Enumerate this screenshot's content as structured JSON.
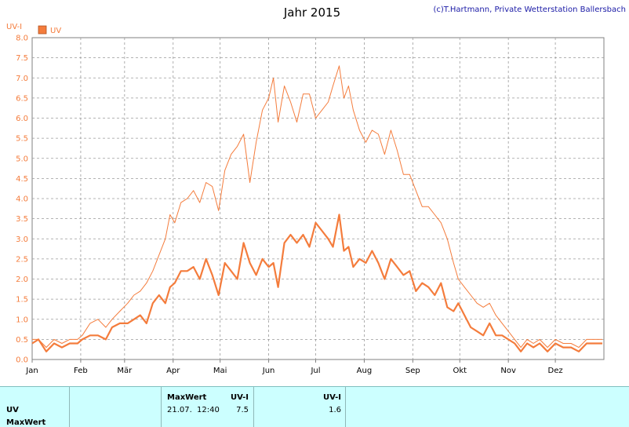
{
  "chart_data": {
    "type": "line",
    "title": "Jahr 2015",
    "copyright": "(c)T.Hartmann, Private Wetterstation Ballersbach",
    "ylabel": "UV-I",
    "ylim": [
      0,
      8
    ],
    "yticks": [
      "0.0",
      "0.5",
      "1.0",
      "1.5",
      "2.0",
      "2.5",
      "3.0",
      "3.5",
      "4.0",
      "4.5",
      "5.0",
      "5.5",
      "6.0",
      "6.5",
      "7.0",
      "7.5",
      "8.0"
    ],
    "xlim": [
      1,
      366
    ],
    "month_labels": [
      "Jan",
      "Feb",
      "Mär",
      "Apr",
      "Mai",
      "Jun",
      "Jul",
      "Aug",
      "Sep",
      "Okt",
      "Nov",
      "Dez"
    ],
    "grid": true,
    "legend": {
      "label": "UV",
      "color": "#f47c3c"
    },
    "series": [
      {
        "name": "UV",
        "role": "max",
        "color": "#f47c3c",
        "values": [
          [
            1,
            0.5
          ],
          [
            5,
            0.5
          ],
          [
            10,
            0.3
          ],
          [
            15,
            0.5
          ],
          [
            20,
            0.4
          ],
          [
            25,
            0.5
          ],
          [
            30,
            0.5
          ],
          [
            33,
            0.6
          ],
          [
            38,
            0.9
          ],
          [
            43,
            1.0
          ],
          [
            48,
            0.8
          ],
          [
            52,
            1.0
          ],
          [
            57,
            1.2
          ],
          [
            62,
            1.4
          ],
          [
            66,
            1.6
          ],
          [
            70,
            1.7
          ],
          [
            74,
            1.9
          ],
          [
            78,
            2.2
          ],
          [
            82,
            2.6
          ],
          [
            86,
            3.0
          ],
          [
            89,
            3.6
          ],
          [
            92,
            3.4
          ],
          [
            96,
            3.9
          ],
          [
            100,
            4.0
          ],
          [
            104,
            4.2
          ],
          [
            108,
            3.9
          ],
          [
            112,
            4.4
          ],
          [
            116,
            4.3
          ],
          [
            120,
            3.7
          ],
          [
            124,
            4.7
          ],
          [
            128,
            5.1
          ],
          [
            132,
            5.3
          ],
          [
            136,
            5.6
          ],
          [
            140,
            4.4
          ],
          [
            144,
            5.4
          ],
          [
            148,
            6.2
          ],
          [
            152,
            6.5
          ],
          [
            155,
            7.0
          ],
          [
            158,
            5.9
          ],
          [
            162,
            6.8
          ],
          [
            166,
            6.4
          ],
          [
            170,
            5.9
          ],
          [
            174,
            6.6
          ],
          [
            178,
            6.6
          ],
          [
            182,
            6.0
          ],
          [
            186,
            6.2
          ],
          [
            190,
            6.4
          ],
          [
            193,
            6.8
          ],
          [
            197,
            7.3
          ],
          [
            200,
            6.5
          ],
          [
            203,
            6.8
          ],
          [
            206,
            6.2
          ],
          [
            210,
            5.7
          ],
          [
            214,
            5.4
          ],
          [
            218,
            5.7
          ],
          [
            222,
            5.6
          ],
          [
            226,
            5.1
          ],
          [
            230,
            5.7
          ],
          [
            234,
            5.2
          ],
          [
            238,
            4.6
          ],
          [
            242,
            4.6
          ],
          [
            246,
            4.2
          ],
          [
            250,
            3.8
          ],
          [
            254,
            3.8
          ],
          [
            258,
            3.6
          ],
          [
            262,
            3.4
          ],
          [
            266,
            3.0
          ],
          [
            270,
            2.4
          ],
          [
            273,
            2.0
          ],
          [
            277,
            1.8
          ],
          [
            281,
            1.6
          ],
          [
            285,
            1.4
          ],
          [
            289,
            1.3
          ],
          [
            293,
            1.4
          ],
          [
            297,
            1.1
          ],
          [
            301,
            0.9
          ],
          [
            305,
            0.7
          ],
          [
            309,
            0.5
          ],
          [
            313,
            0.3
          ],
          [
            317,
            0.5
          ],
          [
            321,
            0.4
          ],
          [
            325,
            0.5
          ],
          [
            330,
            0.3
          ],
          [
            335,
            0.5
          ],
          [
            340,
            0.4
          ],
          [
            345,
            0.4
          ],
          [
            350,
            0.3
          ],
          [
            355,
            0.5
          ],
          [
            360,
            0.5
          ],
          [
            365,
            0.5
          ]
        ]
      },
      {
        "name": "UV",
        "role": "mean",
        "color": "#f47c3c",
        "values": [
          [
            1,
            0.4
          ],
          [
            5,
            0.5
          ],
          [
            10,
            0.2
          ],
          [
            15,
            0.4
          ],
          [
            20,
            0.3
          ],
          [
            25,
            0.4
          ],
          [
            30,
            0.4
          ],
          [
            33,
            0.5
          ],
          [
            38,
            0.6
          ],
          [
            43,
            0.6
          ],
          [
            48,
            0.5
          ],
          [
            52,
            0.8
          ],
          [
            57,
            0.9
          ],
          [
            62,
            0.9
          ],
          [
            66,
            1.0
          ],
          [
            70,
            1.1
          ],
          [
            74,
            0.9
          ],
          [
            78,
            1.4
          ],
          [
            82,
            1.6
          ],
          [
            86,
            1.4
          ],
          [
            89,
            1.8
          ],
          [
            92,
            1.9
          ],
          [
            96,
            2.2
          ],
          [
            100,
            2.2
          ],
          [
            104,
            2.3
          ],
          [
            108,
            2.0
          ],
          [
            112,
            2.5
          ],
          [
            116,
            2.1
          ],
          [
            120,
            1.6
          ],
          [
            124,
            2.4
          ],
          [
            128,
            2.2
          ],
          [
            132,
            2.0
          ],
          [
            136,
            2.9
          ],
          [
            140,
            2.4
          ],
          [
            144,
            2.1
          ],
          [
            148,
            2.5
          ],
          [
            152,
            2.3
          ],
          [
            155,
            2.4
          ],
          [
            158,
            1.8
          ],
          [
            162,
            2.9
          ],
          [
            166,
            3.1
          ],
          [
            170,
            2.9
          ],
          [
            174,
            3.1
          ],
          [
            178,
            2.8
          ],
          [
            182,
            3.4
          ],
          [
            186,
            3.2
          ],
          [
            190,
            3.0
          ],
          [
            193,
            2.8
          ],
          [
            197,
            3.6
          ],
          [
            200,
            2.7
          ],
          [
            203,
            2.8
          ],
          [
            206,
            2.3
          ],
          [
            210,
            2.5
          ],
          [
            214,
            2.4
          ],
          [
            218,
            2.7
          ],
          [
            222,
            2.4
          ],
          [
            226,
            2.0
          ],
          [
            230,
            2.5
          ],
          [
            234,
            2.3
          ],
          [
            238,
            2.1
          ],
          [
            242,
            2.2
          ],
          [
            246,
            1.7
          ],
          [
            250,
            1.9
          ],
          [
            254,
            1.8
          ],
          [
            258,
            1.6
          ],
          [
            262,
            1.9
          ],
          [
            266,
            1.3
          ],
          [
            270,
            1.2
          ],
          [
            273,
            1.4
          ],
          [
            277,
            1.1
          ],
          [
            281,
            0.8
          ],
          [
            285,
            0.7
          ],
          [
            289,
            0.6
          ],
          [
            293,
            0.9
          ],
          [
            297,
            0.6
          ],
          [
            301,
            0.6
          ],
          [
            305,
            0.5
          ],
          [
            309,
            0.4
          ],
          [
            313,
            0.2
          ],
          [
            317,
            0.4
          ],
          [
            321,
            0.3
          ],
          [
            325,
            0.4
          ],
          [
            330,
            0.2
          ],
          [
            335,
            0.4
          ],
          [
            340,
            0.3
          ],
          [
            345,
            0.3
          ],
          [
            350,
            0.2
          ],
          [
            355,
            0.4
          ],
          [
            360,
            0.4
          ],
          [
            365,
            0.4
          ]
        ]
      }
    ]
  },
  "table": {
    "header": {
      "maxwert": "MaxWert",
      "uvi1": "UV-I",
      "uvi2": "UV-I"
    },
    "rows": {
      "uv_label": "UV",
      "maxwert_label": "MaxWert"
    },
    "values": {
      "max_date": "21.07.",
      "max_time": "12:40",
      "max_value": "7.5",
      "mean_value": "1.6"
    }
  }
}
